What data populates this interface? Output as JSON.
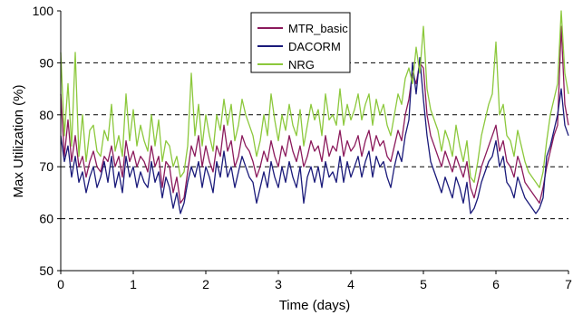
{
  "chart_data": {
    "type": "line",
    "title": "",
    "xlabel": "Time (days)",
    "ylabel": "Max Utilization (%)",
    "xlim": [
      0,
      7
    ],
    "ylim": [
      50,
      100
    ],
    "x_ticks": [
      "0",
      "1",
      "2",
      "3",
      "4",
      "5",
      "6",
      "7"
    ],
    "y_ticks": [
      "50",
      "60",
      "70",
      "80",
      "90",
      "100"
    ],
    "gridlines": "horizontal dashed at 60, 70, 80, 90",
    "legend_position": "top-center",
    "series": [
      {
        "name": "MTR_basic",
        "color": "#8B1A5C",
        "x": [
          0,
          0.05,
          0.1,
          0.15,
          0.2,
          0.25,
          0.3,
          0.35,
          0.4,
          0.45,
          0.5,
          0.55,
          0.6,
          0.65,
          0.7,
          0.75,
          0.8,
          0.85,
          0.9,
          0.95,
          1.0,
          1.05,
          1.1,
          1.15,
          1.2,
          1.25,
          1.3,
          1.35,
          1.4,
          1.45,
          1.5,
          1.55,
          1.6,
          1.65,
          1.7,
          1.75,
          1.8,
          1.85,
          1.9,
          1.95,
          2.0,
          2.05,
          2.1,
          2.15,
          2.2,
          2.25,
          2.3,
          2.35,
          2.4,
          2.45,
          2.5,
          2.55,
          2.6,
          2.65,
          2.7,
          2.75,
          2.8,
          2.85,
          2.9,
          2.95,
          3.0,
          3.05,
          3.1,
          3.15,
          3.2,
          3.25,
          3.3,
          3.35,
          3.4,
          3.45,
          3.5,
          3.55,
          3.6,
          3.65,
          3.7,
          3.75,
          3.8,
          3.85,
          3.9,
          3.95,
          4.0,
          4.05,
          4.1,
          4.15,
          4.2,
          4.25,
          4.3,
          4.35,
          4.4,
          4.45,
          4.5,
          4.55,
          4.6,
          4.65,
          4.7,
          4.75,
          4.8,
          4.85,
          4.9,
          4.95,
          5.0,
          5.05,
          5.1,
          5.15,
          5.2,
          5.25,
          5.3,
          5.35,
          5.4,
          5.45,
          5.5,
          5.55,
          5.6,
          5.65,
          5.7,
          5.75,
          5.8,
          5.85,
          5.9,
          5.95,
          6.0,
          6.05,
          6.1,
          6.15,
          6.2,
          6.25,
          6.3,
          6.35,
          6.4,
          6.45,
          6.5,
          6.55,
          6.6,
          6.65,
          6.7,
          6.75,
          6.8,
          6.85,
          6.9,
          6.95,
          7.0
        ],
        "values": [
          84,
          72,
          79,
          71,
          76,
          70,
          72,
          68,
          71,
          73,
          70,
          69,
          72,
          71,
          74,
          70,
          72,
          68,
          75,
          71,
          73,
          70,
          72,
          71,
          69,
          74,
          70,
          72,
          66,
          71,
          70,
          65,
          68,
          63,
          64,
          69,
          74,
          72,
          76,
          70,
          74,
          71,
          69,
          74,
          72,
          78,
          73,
          75,
          70,
          72,
          76,
          74,
          73,
          71,
          68,
          70,
          73,
          71,
          75,
          72,
          70,
          74,
          72,
          76,
          73,
          71,
          74,
          70,
          72,
          75,
          73,
          74,
          71,
          76,
          72,
          74,
          73,
          77,
          72,
          75,
          73,
          74,
          76,
          72,
          75,
          77,
          73,
          76,
          74,
          75,
          72,
          71,
          74,
          77,
          75,
          80,
          83,
          88,
          86,
          90,
          89,
          80,
          76,
          74,
          72,
          70,
          73,
          71,
          69,
          72,
          70,
          68,
          71,
          66,
          64,
          67,
          70,
          72,
          74,
          76,
          78,
          73,
          75,
          71,
          70,
          68,
          72,
          70,
          67,
          66,
          65,
          64,
          63,
          66,
          70,
          73,
          76,
          78,
          97,
          82,
          78
        ]
      },
      {
        "name": "DACORM",
        "color": "#1A1A7A",
        "x": [
          0,
          0.05,
          0.1,
          0.15,
          0.2,
          0.25,
          0.3,
          0.35,
          0.4,
          0.45,
          0.5,
          0.55,
          0.6,
          0.65,
          0.7,
          0.75,
          0.8,
          0.85,
          0.9,
          0.95,
          1.0,
          1.05,
          1.1,
          1.15,
          1.2,
          1.25,
          1.3,
          1.35,
          1.4,
          1.45,
          1.5,
          1.55,
          1.6,
          1.65,
          1.7,
          1.75,
          1.8,
          1.85,
          1.9,
          1.95,
          2.0,
          2.05,
          2.1,
          2.15,
          2.2,
          2.25,
          2.3,
          2.35,
          2.4,
          2.45,
          2.5,
          2.55,
          2.6,
          2.65,
          2.7,
          2.75,
          2.8,
          2.85,
          2.9,
          2.95,
          3.0,
          3.05,
          3.1,
          3.15,
          3.2,
          3.25,
          3.3,
          3.35,
          3.4,
          3.45,
          3.5,
          3.55,
          3.6,
          3.65,
          3.7,
          3.75,
          3.8,
          3.85,
          3.9,
          3.95,
          4.0,
          4.05,
          4.1,
          4.15,
          4.2,
          4.25,
          4.3,
          4.35,
          4.4,
          4.45,
          4.5,
          4.55,
          4.6,
          4.65,
          4.7,
          4.75,
          4.8,
          4.85,
          4.9,
          4.95,
          5.0,
          5.05,
          5.1,
          5.15,
          5.2,
          5.25,
          5.3,
          5.35,
          5.4,
          5.45,
          5.5,
          5.55,
          5.6,
          5.65,
          5.7,
          5.75,
          5.8,
          5.85,
          5.9,
          5.95,
          6.0,
          6.05,
          6.1,
          6.15,
          6.2,
          6.25,
          6.3,
          6.35,
          6.4,
          6.45,
          6.5,
          6.55,
          6.6,
          6.65,
          6.7,
          6.75,
          6.8,
          6.85,
          6.9,
          6.95,
          7.0
        ],
        "values": [
          76,
          71,
          74,
          68,
          72,
          67,
          69,
          65,
          68,
          70,
          66,
          68,
          71,
          67,
          72,
          66,
          69,
          65,
          72,
          68,
          70,
          66,
          69,
          67,
          66,
          71,
          67,
          69,
          64,
          68,
          66,
          62,
          65,
          61,
          63,
          67,
          70,
          68,
          71,
          66,
          70,
          68,
          65,
          71,
          68,
          73,
          68,
          70,
          66,
          69,
          72,
          70,
          68,
          67,
          63,
          66,
          69,
          66,
          71,
          68,
          66,
          70,
          67,
          71,
          68,
          66,
          70,
          63,
          68,
          70,
          67,
          70,
          66,
          71,
          68,
          69,
          67,
          72,
          67,
          71,
          68,
          70,
          72,
          68,
          71,
          73,
          68,
          72,
          70,
          71,
          68,
          66,
          70,
          73,
          71,
          76,
          79,
          90,
          84,
          91,
          83,
          76,
          71,
          69,
          67,
          65,
          68,
          66,
          64,
          68,
          66,
          63,
          67,
          61,
          62,
          64,
          67,
          69,
          71,
          72,
          75,
          70,
          72,
          67,
          66,
          64,
          68,
          66,
          64,
          63,
          62,
          61,
          62,
          64,
          72,
          74,
          77,
          80,
          85,
          78,
          76
        ]
      },
      {
        "name": "NRG",
        "color": "#8CC83C",
        "x": [
          0,
          0.05,
          0.1,
          0.15,
          0.2,
          0.25,
          0.3,
          0.35,
          0.4,
          0.45,
          0.5,
          0.55,
          0.6,
          0.65,
          0.7,
          0.75,
          0.8,
          0.85,
          0.9,
          0.95,
          1.0,
          1.05,
          1.1,
          1.15,
          1.2,
          1.25,
          1.3,
          1.35,
          1.4,
          1.45,
          1.5,
          1.55,
          1.6,
          1.65,
          1.7,
          1.75,
          1.8,
          1.85,
          1.9,
          1.95,
          2.0,
          2.05,
          2.1,
          2.15,
          2.2,
          2.25,
          2.3,
          2.35,
          2.4,
          2.45,
          2.5,
          2.55,
          2.6,
          2.65,
          2.7,
          2.75,
          2.8,
          2.85,
          2.9,
          2.95,
          3.0,
          3.05,
          3.1,
          3.15,
          3.2,
          3.25,
          3.3,
          3.35,
          3.4,
          3.45,
          3.5,
          3.55,
          3.6,
          3.65,
          3.7,
          3.75,
          3.8,
          3.85,
          3.9,
          3.95,
          4.0,
          4.05,
          4.1,
          4.15,
          4.2,
          4.25,
          4.3,
          4.35,
          4.4,
          4.45,
          4.5,
          4.55,
          4.6,
          4.65,
          4.7,
          4.75,
          4.8,
          4.85,
          4.9,
          4.95,
          5.0,
          5.05,
          5.1,
          5.15,
          5.2,
          5.25,
          5.3,
          5.35,
          5.4,
          5.45,
          5.5,
          5.55,
          5.6,
          5.65,
          5.7,
          5.75,
          5.8,
          5.85,
          5.9,
          5.95,
          6.0,
          6.05,
          6.1,
          6.15,
          6.2,
          6.25,
          6.3,
          6.35,
          6.4,
          6.45,
          6.5,
          6.55,
          6.6,
          6.65,
          6.7,
          6.75,
          6.8,
          6.85,
          6.9,
          6.95,
          7.0
        ],
        "values": [
          92,
          76,
          86,
          74,
          92,
          72,
          80,
          71,
          77,
          78,
          73,
          72,
          77,
          75,
          82,
          73,
          76,
          72,
          84,
          75,
          81,
          74,
          78,
          75,
          73,
          80,
          74,
          79,
          71,
          75,
          74,
          70,
          72,
          68,
          69,
          74,
          88,
          76,
          82,
          74,
          80,
          76,
          73,
          80,
          77,
          83,
          78,
          82,
          75,
          78,
          83,
          80,
          78,
          76,
          72,
          75,
          80,
          76,
          84,
          79,
          75,
          80,
          77,
          82,
          78,
          76,
          81,
          74,
          78,
          82,
          79,
          81,
          76,
          84,
          79,
          80,
          78,
          85,
          78,
          82,
          79,
          81,
          84,
          79,
          82,
          84,
          78,
          83,
          80,
          82,
          78,
          76,
          80,
          84,
          82,
          87,
          89,
          86,
          93,
          88,
          97,
          85,
          81,
          79,
          77,
          73,
          77,
          75,
          72,
          78,
          74,
          71,
          75,
          68,
          67,
          71,
          76,
          79,
          82,
          84,
          94,
          80,
          82,
          76,
          75,
          72,
          77,
          74,
          71,
          69,
          68,
          67,
          66,
          69,
          75,
          80,
          83,
          86,
          100,
          88,
          84
        ]
      }
    ]
  }
}
